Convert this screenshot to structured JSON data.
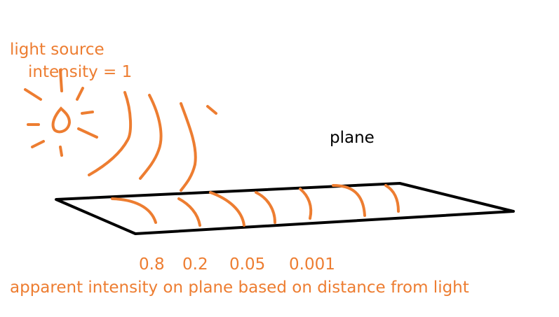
{
  "labels": {
    "light_source": "light source",
    "intensity": "intensity = 1",
    "plane": "plane",
    "distances": [
      "0.8",
      "0.2",
      "0.05",
      "0.001"
    ],
    "caption": "apparent intensity on plane based on distance from light"
  }
}
